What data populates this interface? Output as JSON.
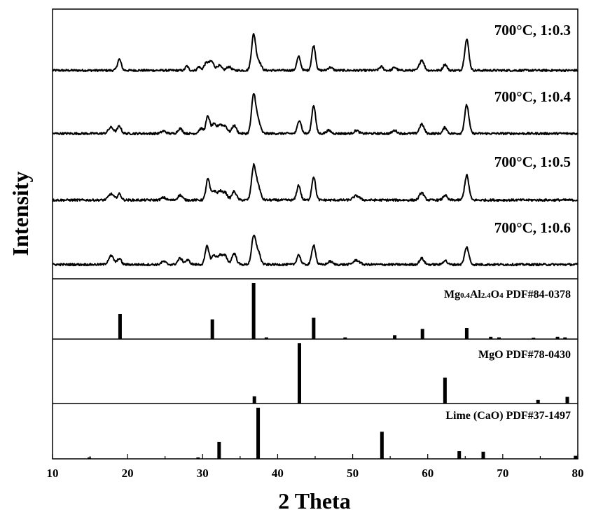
{
  "chart_data": {
    "type": "line",
    "xlabel": "2 Theta",
    "ylabel": "Intensity",
    "xlim": [
      10,
      80
    ],
    "x_ticks": [
      "10",
      "20",
      "30",
      "40",
      "50",
      "60",
      "70",
      "80"
    ],
    "grid": false,
    "line_color": "#000000",
    "series": [
      {
        "name": "700°C, 1:0.3",
        "baseline": 0.04,
        "peaks": [
          [
            18.9,
            0.18,
            0.25
          ],
          [
            27.9,
            0.07,
            0.2
          ],
          [
            29.5,
            0.06,
            0.2
          ],
          [
            30.5,
            0.12,
            0.3
          ],
          [
            31.2,
            0.14,
            0.3
          ],
          [
            32.2,
            0.08,
            0.3
          ],
          [
            33.5,
            0.06,
            0.3
          ],
          [
            36.8,
            0.58,
            0.28
          ],
          [
            37.5,
            0.14,
            0.3
          ],
          [
            42.8,
            0.22,
            0.25
          ],
          [
            44.8,
            0.4,
            0.25
          ],
          [
            47.0,
            0.05,
            0.3
          ],
          [
            53.8,
            0.06,
            0.25
          ],
          [
            55.6,
            0.05,
            0.25
          ],
          [
            59.2,
            0.17,
            0.3
          ],
          [
            62.3,
            0.1,
            0.25
          ],
          [
            65.2,
            0.5,
            0.28
          ]
        ]
      },
      {
        "name": "700°C, 1:0.4",
        "baseline": 0.05,
        "peaks": [
          [
            17.8,
            0.1,
            0.35
          ],
          [
            18.9,
            0.12,
            0.25
          ],
          [
            24.8,
            0.04,
            0.3
          ],
          [
            27.0,
            0.08,
            0.3
          ],
          [
            29.8,
            0.08,
            0.3
          ],
          [
            30.7,
            0.28,
            0.25
          ],
          [
            31.5,
            0.15,
            0.3
          ],
          [
            32.3,
            0.14,
            0.3
          ],
          [
            33.0,
            0.12,
            0.3
          ],
          [
            34.2,
            0.13,
            0.3
          ],
          [
            36.8,
            0.62,
            0.28
          ],
          [
            37.4,
            0.2,
            0.3
          ],
          [
            42.9,
            0.22,
            0.25
          ],
          [
            44.8,
            0.46,
            0.25
          ],
          [
            46.8,
            0.05,
            0.3
          ],
          [
            50.5,
            0.05,
            0.3
          ],
          [
            55.6,
            0.05,
            0.3
          ],
          [
            59.2,
            0.15,
            0.3
          ],
          [
            62.3,
            0.1,
            0.25
          ],
          [
            65.2,
            0.46,
            0.28
          ]
        ]
      },
      {
        "name": "700°C, 1:0.5",
        "baseline": 0.05,
        "peaks": [
          [
            17.8,
            0.1,
            0.35
          ],
          [
            18.9,
            0.1,
            0.25
          ],
          [
            24.8,
            0.04,
            0.3
          ],
          [
            27.0,
            0.08,
            0.3
          ],
          [
            30.7,
            0.34,
            0.25
          ],
          [
            31.5,
            0.15,
            0.3
          ],
          [
            32.3,
            0.14,
            0.3
          ],
          [
            33.0,
            0.12,
            0.3
          ],
          [
            34.2,
            0.14,
            0.3
          ],
          [
            36.8,
            0.54,
            0.28
          ],
          [
            37.4,
            0.22,
            0.3
          ],
          [
            42.8,
            0.24,
            0.25
          ],
          [
            44.8,
            0.38,
            0.25
          ],
          [
            50.5,
            0.07,
            0.4
          ],
          [
            59.2,
            0.12,
            0.3
          ],
          [
            62.3,
            0.08,
            0.25
          ],
          [
            65.2,
            0.4,
            0.28
          ]
        ]
      },
      {
        "name": "700°C, 1:0.6",
        "baseline": 0.05,
        "peaks": [
          [
            17.8,
            0.14,
            0.35
          ],
          [
            18.9,
            0.1,
            0.25
          ],
          [
            24.8,
            0.05,
            0.3
          ],
          [
            27.0,
            0.1,
            0.3
          ],
          [
            28.0,
            0.07,
            0.3
          ],
          [
            30.6,
            0.3,
            0.25
          ],
          [
            31.5,
            0.15,
            0.3
          ],
          [
            32.3,
            0.15,
            0.3
          ],
          [
            33.0,
            0.14,
            0.3
          ],
          [
            34.2,
            0.18,
            0.3
          ],
          [
            36.8,
            0.44,
            0.28
          ],
          [
            37.4,
            0.2,
            0.3
          ],
          [
            42.8,
            0.16,
            0.25
          ],
          [
            44.8,
            0.32,
            0.25
          ],
          [
            47.0,
            0.05,
            0.3
          ],
          [
            50.5,
            0.07,
            0.4
          ],
          [
            59.2,
            0.1,
            0.3
          ],
          [
            62.3,
            0.07,
            0.25
          ],
          [
            65.2,
            0.28,
            0.28
          ]
        ]
      }
    ],
    "reference_patterns": [
      {
        "label": "Mg0.4Al2.4O4 PDF#84-0378",
        "formula_parts": [
          [
            "Mg",
            false
          ],
          [
            "0.4",
            true
          ],
          [
            "Al",
            false
          ],
          [
            "2.4",
            true
          ],
          [
            "O",
            false
          ],
          [
            "4",
            true
          ]
        ],
        "pdf": " PDF#84-0378",
        "lines": [
          [
            19.0,
            0.45
          ],
          [
            31.3,
            0.35
          ],
          [
            36.8,
            1.0
          ],
          [
            38.5,
            0.03
          ],
          [
            44.8,
            0.38
          ],
          [
            49.0,
            0.03
          ],
          [
            55.6,
            0.07
          ],
          [
            59.3,
            0.18
          ],
          [
            65.2,
            0.2
          ],
          [
            68.4,
            0.04
          ],
          [
            69.5,
            0.03
          ],
          [
            74.1,
            0.02
          ],
          [
            77.3,
            0.04
          ],
          [
            78.3,
            0.03
          ]
        ]
      },
      {
        "label": "MgO PDF#78-0430",
        "formula_parts": [
          [
            "MgO",
            false
          ]
        ],
        "pdf": " PDF#78-0430",
        "lines": [
          [
            36.9,
            0.12
          ],
          [
            42.9,
            1.0
          ],
          [
            62.3,
            0.43
          ],
          [
            74.7,
            0.06
          ],
          [
            78.6,
            0.11
          ]
        ]
      },
      {
        "label": "Lime (CaO) PDF#37-1497",
        "formula_parts": [
          [
            "Lime (CaO)",
            false
          ]
        ],
        "pdf": " PDF#37-1497",
        "lines": [
          [
            14.9,
            0.02
          ],
          [
            29.4,
            0.02
          ],
          [
            32.2,
            0.33
          ],
          [
            37.4,
            1.0
          ],
          [
            53.9,
            0.53
          ],
          [
            64.2,
            0.15
          ],
          [
            67.4,
            0.14
          ],
          [
            79.7,
            0.06
          ]
        ]
      }
    ]
  }
}
